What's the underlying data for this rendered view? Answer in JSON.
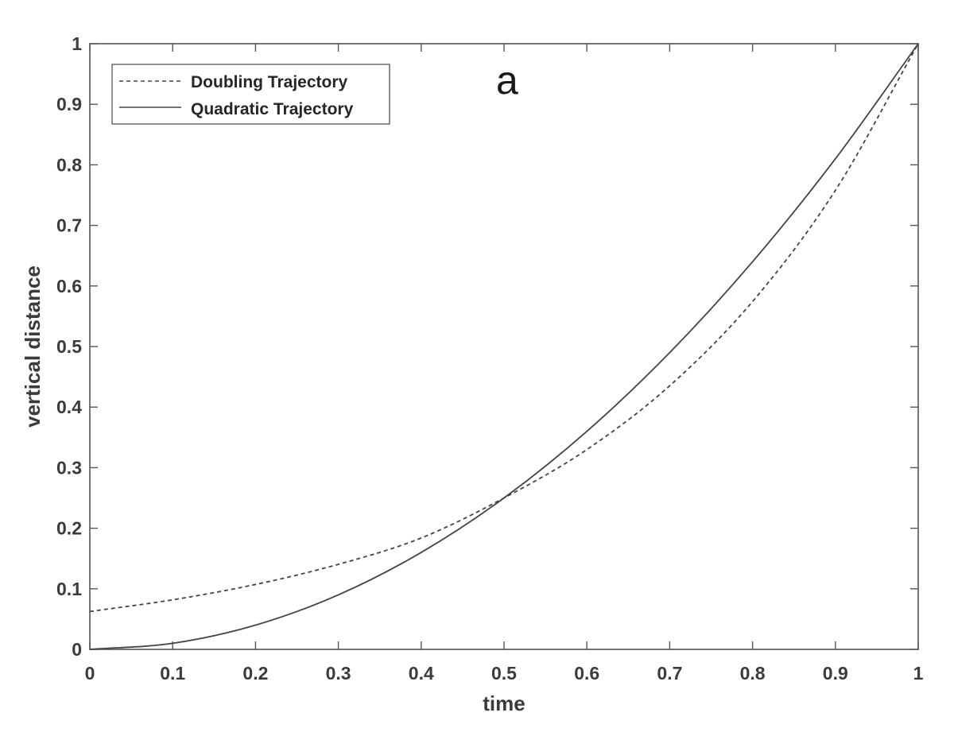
{
  "chart_data": {
    "type": "line",
    "panel_label": "a",
    "xlabel": "time",
    "ylabel": "vertical distance",
    "xlim": [
      0,
      1
    ],
    "ylim": [
      0,
      1
    ],
    "xticks": [
      "0",
      "0.1",
      "0.2",
      "0.3",
      "0.4",
      "0.5",
      "0.6",
      "0.7",
      "0.8",
      "0.9",
      "1"
    ],
    "yticks": [
      "0",
      "0.1",
      "0.2",
      "0.3",
      "0.4",
      "0.5",
      "0.6",
      "0.7",
      "0.8",
      "0.9",
      "1"
    ],
    "grid": false,
    "legend_position": "top-left",
    "x": [
      0,
      0.1,
      0.2,
      0.3,
      0.4,
      0.5,
      0.6,
      0.7,
      0.8,
      0.9,
      1
    ],
    "series": [
      {
        "name": "Doubling Trajectory",
        "style": "dashed",
        "color": "#444444",
        "values": [
          0.0625,
          0.0818,
          0.1072,
          0.1404,
          0.1839,
          0.25,
          0.3299,
          0.4353,
          0.5743,
          0.7579,
          1.0
        ]
      },
      {
        "name": "Quadratic Trajectory",
        "style": "solid",
        "color": "#444444",
        "values": [
          0,
          0.01,
          0.04,
          0.09,
          0.16,
          0.25,
          0.36,
          0.49,
          0.64,
          0.81,
          1.0
        ]
      }
    ]
  }
}
